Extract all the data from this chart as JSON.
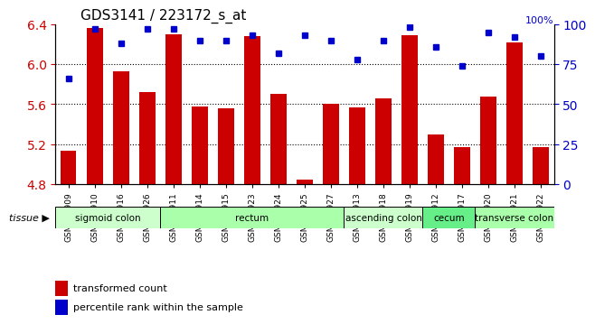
{
  "title": "GDS3141 / 223172_s_at",
  "samples": [
    "GSM234909",
    "GSM234910",
    "GSM234916",
    "GSM234926",
    "GSM234911",
    "GSM234914",
    "GSM234915",
    "GSM234923",
    "GSM234924",
    "GSM234925",
    "GSM234927",
    "GSM234913",
    "GSM234918",
    "GSM234919",
    "GSM234912",
    "GSM234917",
    "GSM234920",
    "GSM234921",
    "GSM234922"
  ],
  "bar_values": [
    5.13,
    6.36,
    5.93,
    5.72,
    6.3,
    5.58,
    5.56,
    6.28,
    5.7,
    4.84,
    5.6,
    5.57,
    5.66,
    6.29,
    5.3,
    5.17,
    5.68,
    6.22,
    5.17
  ],
  "dot_values": [
    66,
    97,
    88,
    97,
    97,
    90,
    90,
    93,
    82,
    93,
    90,
    78,
    90,
    98,
    86,
    74,
    95,
    92,
    80
  ],
  "ylim_left": [
    4.8,
    6.4
  ],
  "ylim_right": [
    0,
    100
  ],
  "yticks_left": [
    4.8,
    5.2,
    5.6,
    6.0,
    6.4
  ],
  "yticks_right": [
    0,
    25,
    50,
    75,
    100
  ],
  "bar_color": "#cc0000",
  "dot_color": "#0000cc",
  "tissue_groups": [
    {
      "label": "sigmoid colon",
      "start": 0,
      "end": 4,
      "color": "#ccffcc"
    },
    {
      "label": "rectum",
      "start": 4,
      "end": 11,
      "color": "#aaffaa"
    },
    {
      "label": "ascending colon",
      "start": 11,
      "end": 14,
      "color": "#ccffcc"
    },
    {
      "label": "cecum",
      "start": 14,
      "end": 16,
      "color": "#66ff99"
    },
    {
      "label": "transverse colon",
      "start": 16,
      "end": 19,
      "color": "#aaffaa"
    }
  ],
  "legend_bar_label": "transformed count",
  "legend_dot_label": "percentile rank within the sample",
  "tissue_label": "tissue",
  "bg_color": "#ffffff",
  "tick_color_left": "#cc0000",
  "tick_color_right": "#0000cc"
}
